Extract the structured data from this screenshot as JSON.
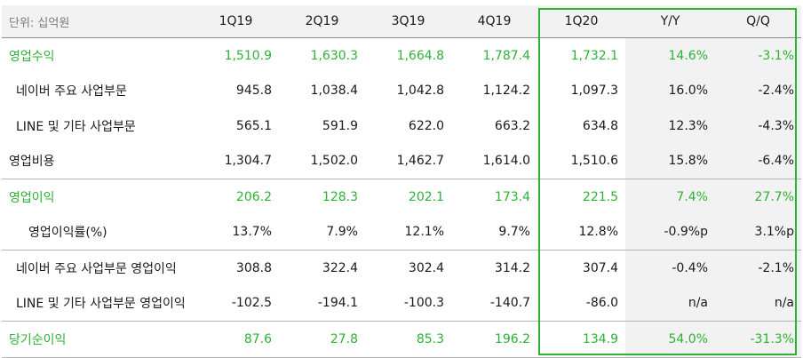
{
  "header": {
    "unit_label": "단위: 십억원",
    "columns": [
      "1Q19",
      "2Q19",
      "3Q19",
      "4Q19",
      "1Q20",
      "Y/Y",
      "Q/Q"
    ]
  },
  "rows": [
    {
      "label": "영업수익",
      "values": [
        "1,510.9",
        "1,630.3",
        "1,664.8",
        "1,787.4",
        "1,732.1",
        "14.6%",
        "-3.1%"
      ]
    },
    {
      "label": "네이버 주요 사업부문",
      "values": [
        "945.8",
        "1,038.4",
        "1,042.8",
        "1,124.2",
        "1,097.3",
        "16.0%",
        "-2.4%"
      ]
    },
    {
      "label": "LINE 및 기타 사업부문",
      "values": [
        "565.1",
        "591.9",
        "622.0",
        "663.2",
        "634.8",
        "12.3%",
        "-4.3%"
      ]
    },
    {
      "label": "영업비용",
      "values": [
        "1,304.7",
        "1,502.0",
        "1,462.7",
        "1,614.0",
        "1,510.6",
        "15.8%",
        "-6.4%"
      ]
    },
    {
      "label": "영업이익",
      "values": [
        "206.2",
        "128.3",
        "202.1",
        "173.4",
        "221.5",
        "7.4%",
        "27.7%"
      ]
    },
    {
      "label": "영업이익률(%)",
      "values": [
        "13.7%",
        "7.9%",
        "12.1%",
        "9.7%",
        "12.8%",
        "-0.9%p",
        "3.1%p"
      ]
    },
    {
      "label": "네이버 주요 사업부문 영업이익",
      "values": [
        "308.8",
        "322.4",
        "302.4",
        "314.2",
        "307.4",
        "-0.4%",
        "-2.1%"
      ]
    },
    {
      "label": "LINE 및 기타 사업부문 영업이익",
      "values": [
        "-102.5",
        "-194.1",
        "-100.3",
        "-140.7",
        "-86.0",
        "n/a",
        "n/a"
      ]
    },
    {
      "label": "당기순이익",
      "values": [
        "87.6",
        "27.8",
        "85.3",
        "196.2",
        "134.9",
        "54.0%",
        "-31.3%"
      ]
    }
  ],
  "colors": {
    "accent_green": "#2eb135",
    "header_bg": "#f2f2f2",
    "highlight_frame": "#2eb135"
  }
}
